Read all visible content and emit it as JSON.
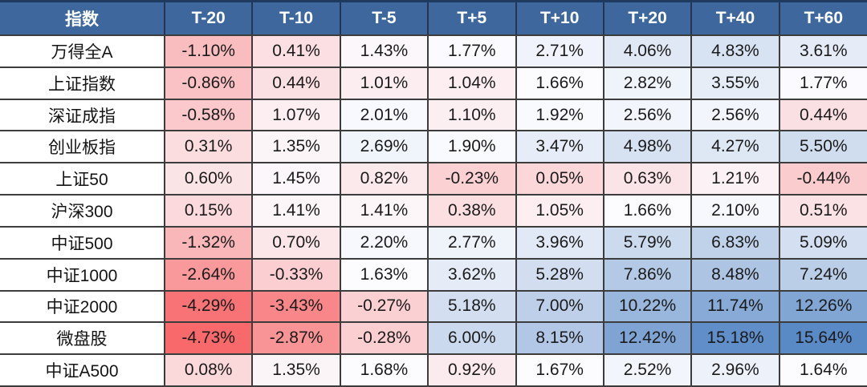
{
  "chart_data": {
    "type": "heatmap",
    "title": "",
    "corner_label": "指数",
    "columns": [
      "T-20",
      "T-10",
      "T-5",
      "T+5",
      "T+10",
      "T+20",
      "T+40",
      "T+60"
    ],
    "rows": [
      "万得全A",
      "上证指数",
      "深证成指",
      "创业板指",
      "上证50",
      "沪深300",
      "中证500",
      "中证1000",
      "中证2000",
      "微盘股",
      "中证A500"
    ],
    "values_pct": [
      [
        -1.1,
        0.41,
        1.43,
        1.77,
        2.71,
        4.06,
        4.83,
        3.61
      ],
      [
        -0.86,
        0.44,
        1.01,
        1.04,
        1.66,
        2.82,
        3.55,
        1.77
      ],
      [
        -0.58,
        1.07,
        2.01,
        1.1,
        1.92,
        2.56,
        2.56,
        0.44
      ],
      [
        0.31,
        1.35,
        2.69,
        1.9,
        3.47,
        4.98,
        4.27,
        5.5
      ],
      [
        0.6,
        1.45,
        0.82,
        -0.23,
        0.05,
        0.63,
        1.21,
        -0.44
      ],
      [
        0.15,
        1.41,
        1.41,
        0.38,
        1.05,
        1.66,
        2.1,
        0.51
      ],
      [
        -1.32,
        0.7,
        2.2,
        2.77,
        3.96,
        5.79,
        6.83,
        5.09
      ],
      [
        -2.64,
        -0.33,
        1.63,
        3.62,
        5.28,
        7.86,
        8.48,
        7.24
      ],
      [
        -4.29,
        -3.43,
        -0.27,
        5.18,
        7.0,
        10.22,
        11.74,
        12.26
      ],
      [
        -4.73,
        -2.87,
        -0.28,
        6.0,
        8.15,
        12.42,
        15.18,
        15.64
      ],
      [
        0.08,
        1.35,
        1.68,
        0.92,
        1.67,
        2.52,
        2.96,
        1.64
      ]
    ],
    "value_suffix": "%",
    "value_decimals": 2,
    "layout": "first column row labels, 8 value columns, heatmap cell shading",
    "colorscale": {
      "min": -4.73,
      "mid": 1.66,
      "max": 15.64,
      "min_color": "#F8696B",
      "mid_color": "#FCFCFF",
      "max_color": "#5A8AC6"
    }
  },
  "colors": {
    "header_bg": "#3E689D",
    "header_text": "#FFFFFF",
    "header_top_border": "#1E3A5F",
    "header_grid_border": "#26354F",
    "grid_border": "#3C3C3C",
    "label_bg": "#FFFFFF",
    "label_text": "#141414",
    "value_text": "#1A1A1A"
  }
}
